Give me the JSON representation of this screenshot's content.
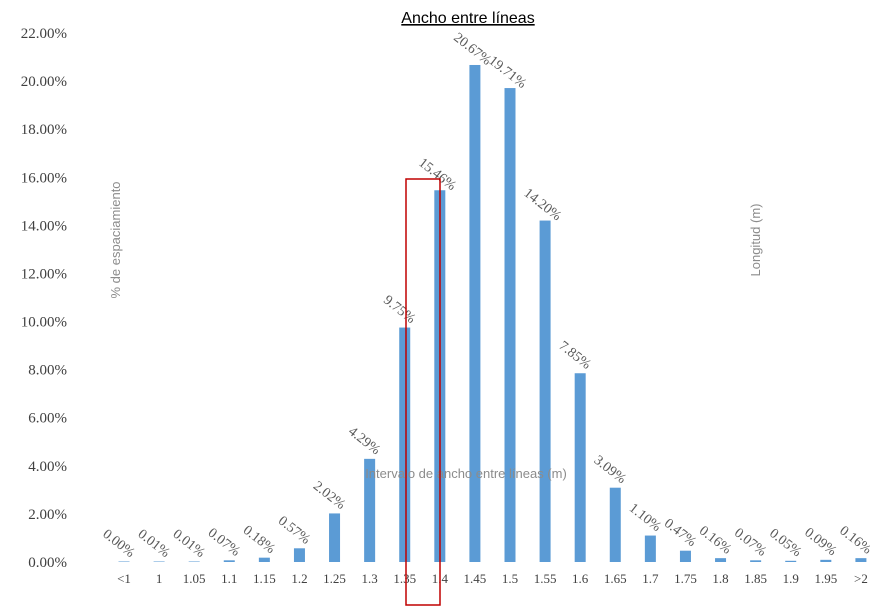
{
  "chart_data": {
    "type": "bar",
    "title": "Ancho entre líneas",
    "ylabel": "% de espaciamiento",
    "y2label": "Longitud (m)",
    "xlabel": "Intervalo de ancho entre líneas (m)",
    "ylim": [
      0,
      22
    ],
    "yticks": [
      "0.00%",
      "2.00%",
      "4.00%",
      "6.00%",
      "8.00%",
      "10.00%",
      "12.00%",
      "14.00%",
      "16.00%",
      "18.00%",
      "20.00%",
      "22.00%"
    ],
    "categories": [
      "<1",
      "1",
      "1.05",
      "1.1",
      "1.15",
      "1.2",
      "1.25",
      "1.3",
      "1.35",
      "1.4",
      "1.45",
      "1.5",
      "1.55",
      "1.6",
      "1.65",
      "1.7",
      "1.75",
      "1.8",
      "1.85",
      "1.9",
      "1.95",
      ">2"
    ],
    "values": [
      0.0,
      0.01,
      0.01,
      0.07,
      0.18,
      0.57,
      2.02,
      4.29,
      9.75,
      15.46,
      20.67,
      19.71,
      14.2,
      7.85,
      3.09,
      1.1,
      0.47,
      0.16,
      0.07,
      0.05,
      0.09,
      0.16
    ],
    "data_labels": [
      "0.00%",
      "0.01%",
      "0.01%",
      "0.07%",
      "0.18%",
      "0.57%",
      "2.02%",
      "4.29%",
      "9.75%",
      "15.46%",
      "20.67%",
      "19.71%",
      "14.20%",
      "7.85%",
      "3.09%",
      "1.10%",
      "0.47%",
      "0.16%",
      "0.07%",
      "0.05%",
      "0.09%",
      "0.16%"
    ],
    "highlighted_category": "1.4",
    "grid": false,
    "colors": {
      "bar": "#5b9bd5",
      "highlight": "#c00000",
      "text": "#404040"
    }
  }
}
